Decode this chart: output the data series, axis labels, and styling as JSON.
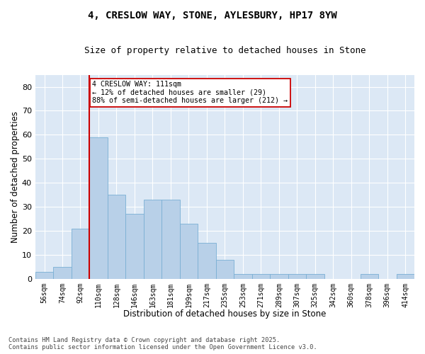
{
  "title": "4, CRESLOW WAY, STONE, AYLESBURY, HP17 8YW",
  "subtitle": "Size of property relative to detached houses in Stone",
  "xlabel": "Distribution of detached houses by size in Stone",
  "ylabel": "Number of detached properties",
  "categories": [
    "56sqm",
    "74sqm",
    "92sqm",
    "110sqm",
    "128sqm",
    "146sqm",
    "163sqm",
    "181sqm",
    "199sqm",
    "217sqm",
    "235sqm",
    "253sqm",
    "271sqm",
    "289sqm",
    "307sqm",
    "325sqm",
    "342sqm",
    "360sqm",
    "378sqm",
    "396sqm",
    "414sqm"
  ],
  "values": [
    3,
    5,
    21,
    59,
    35,
    27,
    33,
    33,
    23,
    15,
    8,
    2,
    2,
    2,
    2,
    2,
    0,
    0,
    2,
    0,
    2
  ],
  "bar_color": "#b8d0e8",
  "bar_edge_color": "#7aafd4",
  "background_color": "#dce8f5",
  "grid_color": "#ffffff",
  "vline_x_index": 3,
  "vline_color": "#cc0000",
  "annotation_text": "4 CRESLOW WAY: 111sqm\n← 12% of detached houses are smaller (29)\n88% of semi-detached houses are larger (212) →",
  "annotation_box_color": "#ffffff",
  "annotation_box_edge": "#cc0000",
  "footer_text": "Contains HM Land Registry data © Crown copyright and database right 2025.\nContains public sector information licensed under the Open Government Licence v3.0.",
  "ylim": [
    0,
    85
  ],
  "yticks": [
    0,
    10,
    20,
    30,
    40,
    50,
    60,
    70,
    80
  ],
  "fig_bg_color": "#ffffff",
  "title_fontsize": 10,
  "subtitle_fontsize": 9
}
